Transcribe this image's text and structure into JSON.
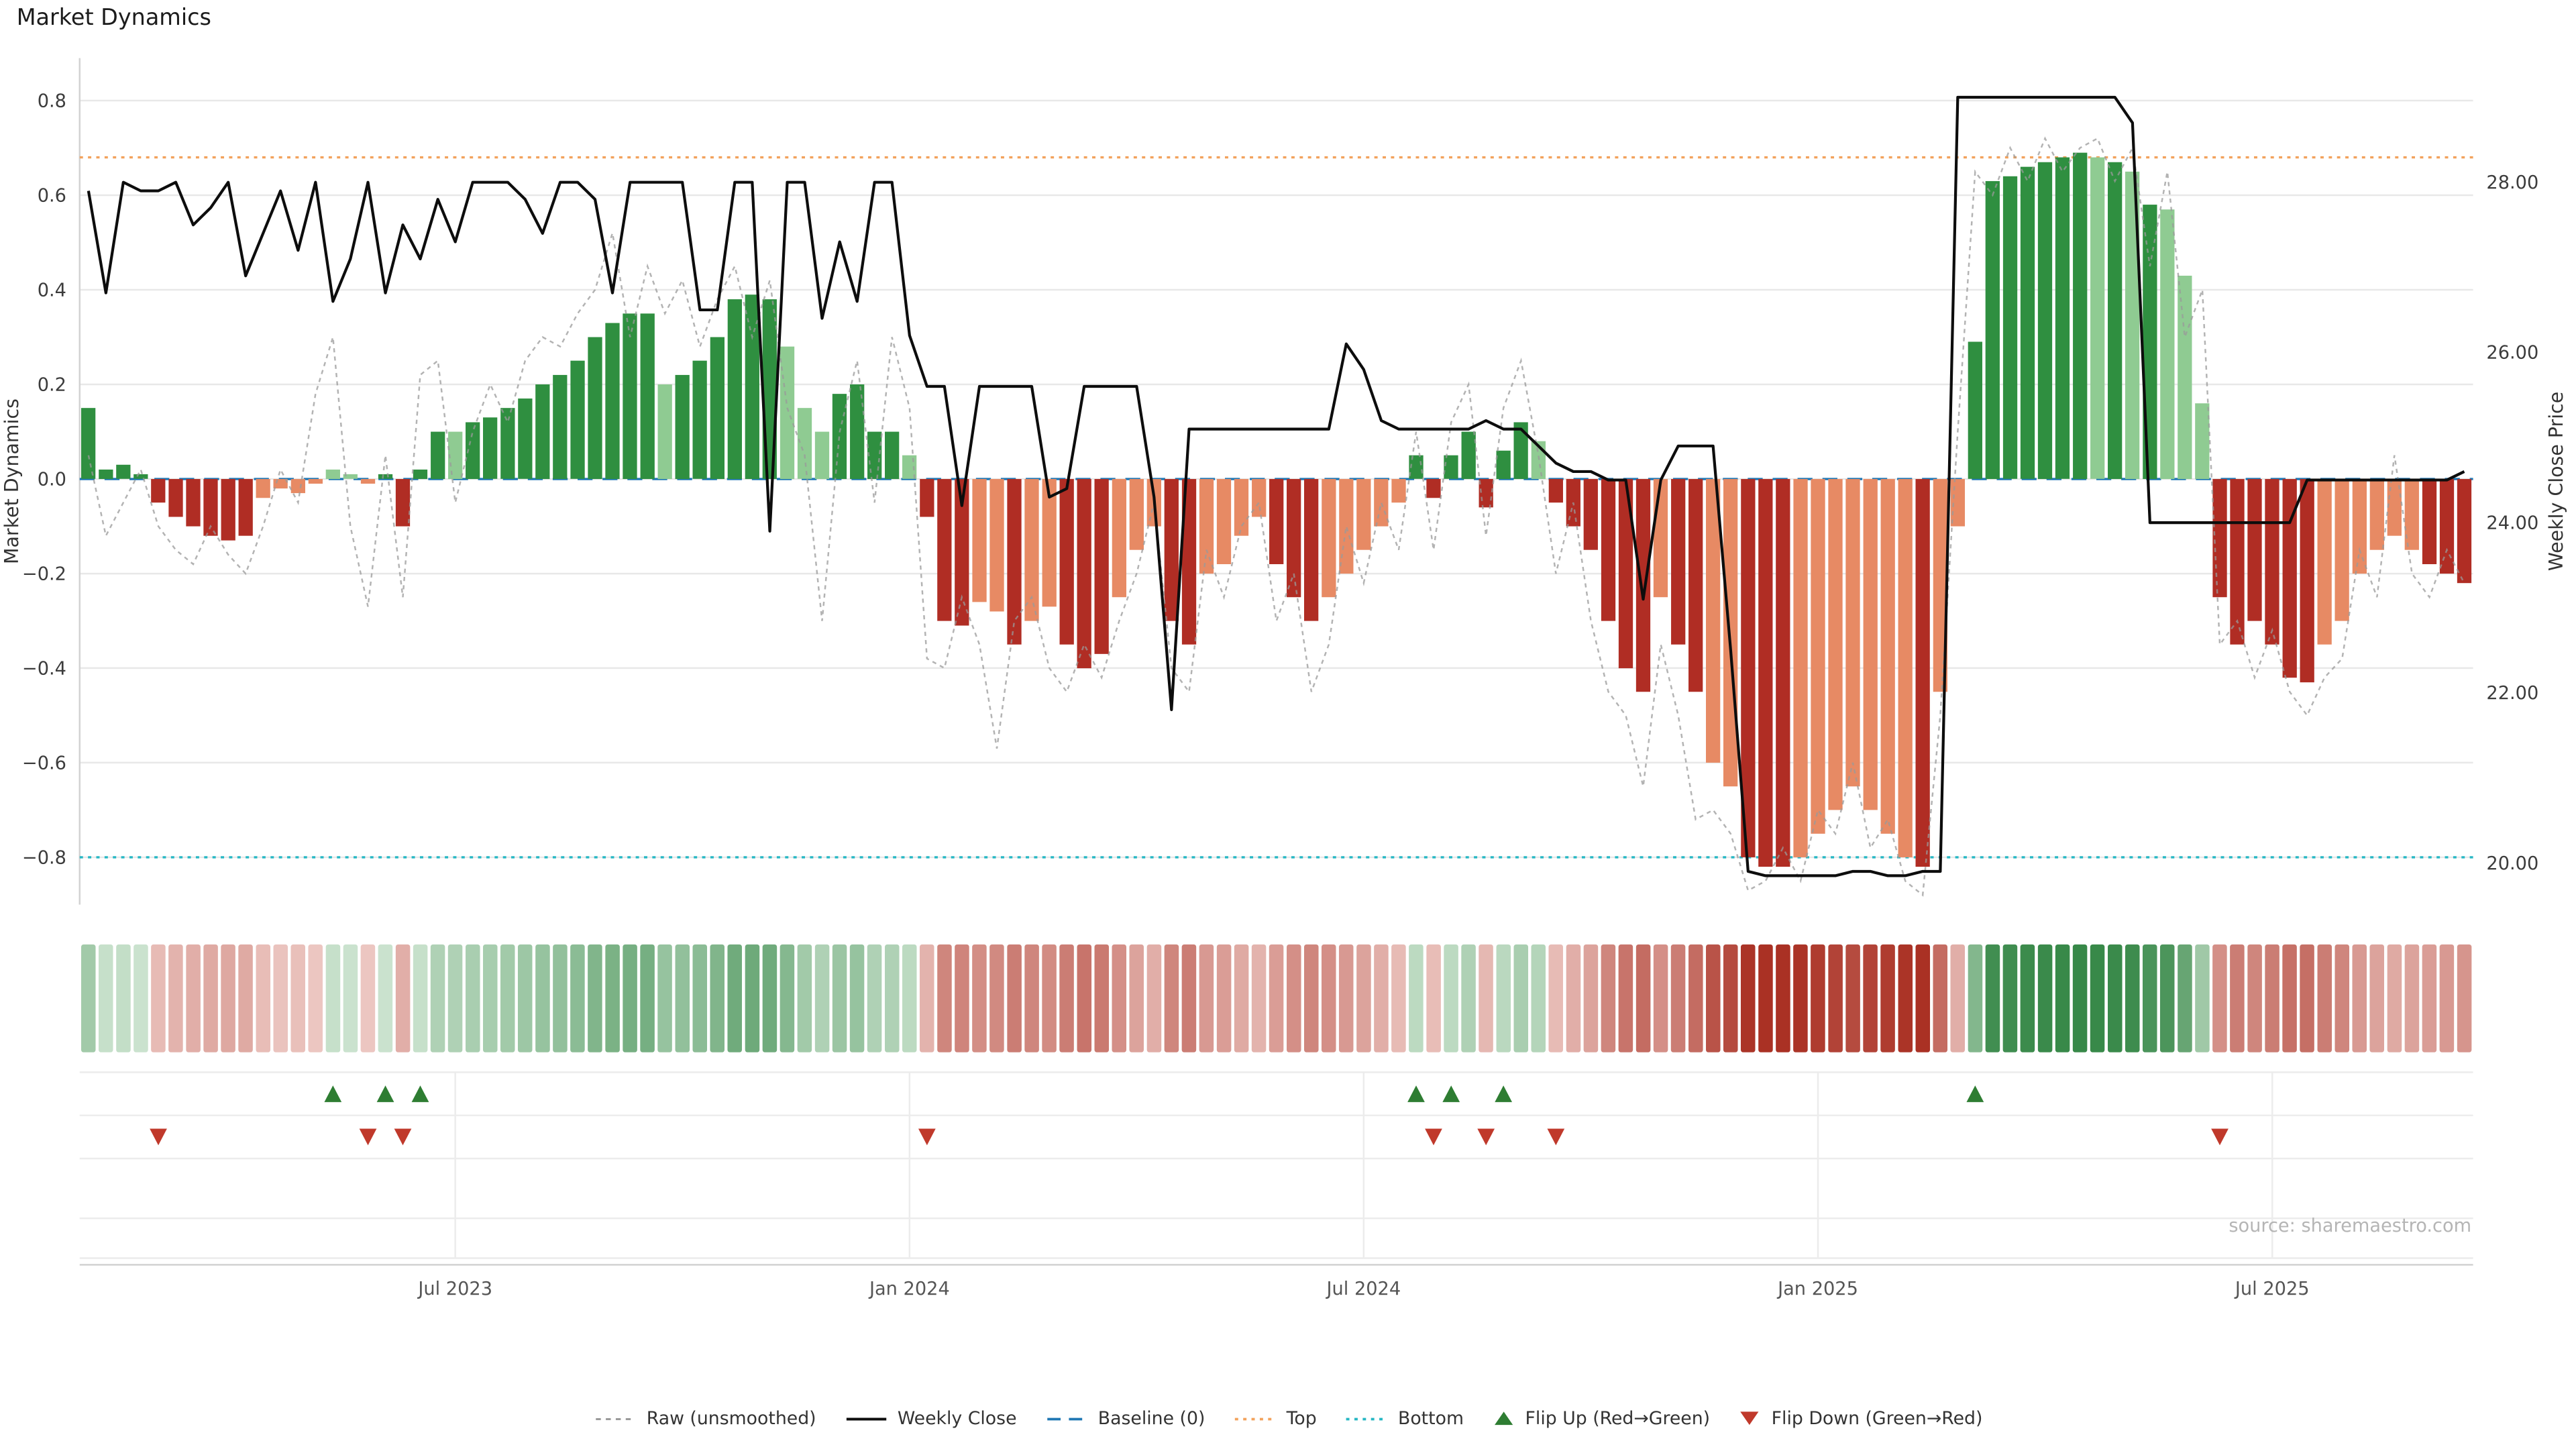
{
  "title": "Market Dynamics",
  "source": "source: sharemaestro.com",
  "legend": {
    "items": [
      {
        "label": "Raw (unsmoothed)"
      },
      {
        "label": "Weekly Close"
      },
      {
        "label": "Baseline (0)"
      },
      {
        "label": "Top"
      },
      {
        "label": "Bottom"
      },
      {
        "label": "Flip Up (Red→Green)"
      },
      {
        "label": "Flip Down (Green→Red)"
      }
    ]
  },
  "colors": {
    "bar_green_dark": "#2f8f40",
    "bar_green_light": "#8fcb92",
    "bar_red_dark": "#b02d24",
    "bar_red_light": "#e78a64",
    "close_line": "#0d0d0d",
    "raw_line": "#9a9a9a",
    "baseline": "#1f77b4",
    "top_line": "#f2a25c",
    "bottom_line": "#26b7c4",
    "flip_up": "#2e7d32",
    "flip_down": "#c0392b",
    "heat_green_lo": "#e7f4e8",
    "heat_green_hi": "#207a33",
    "heat_red_lo": "#f7e0dc",
    "heat_red_hi": "#aa3124",
    "grid": "#e8e8e8",
    "panel": "#ececec",
    "spine": "#d2d2d2"
  },
  "chart_data": {
    "type": "bar",
    "x_unit": "week",
    "n_weeks": 137,
    "x_ticks": [
      {
        "label": "Jul 2023",
        "week": 21
      },
      {
        "label": "Jan 2024",
        "week": 47
      },
      {
        "label": "Jul 2024",
        "week": 73
      },
      {
        "label": "Jan 2025",
        "week": 99
      },
      {
        "label": "Jul 2025",
        "week": 125
      }
    ],
    "left_axis": {
      "label": "Market Dynamics",
      "range": [
        -0.9,
        0.89
      ],
      "ticks": [
        0.8,
        0.6,
        0.4,
        0.2,
        0,
        -0.2,
        -0.4,
        -0.6,
        -0.8
      ]
    },
    "right_axis": {
      "label": "Weekly Close Price",
      "range": [
        19.51,
        29.46
      ],
      "ticks": [
        28,
        26,
        24,
        22,
        20
      ]
    },
    "reference_lines": {
      "baseline": 0,
      "top": 0.68,
      "bottom": -0.8
    },
    "flip_up_weeks": [
      14,
      17,
      19,
      76,
      78,
      81,
      108
    ],
    "flip_down_weeks": [
      4,
      16,
      18,
      48,
      77,
      80,
      84,
      122
    ],
    "series": [
      {
        "name": "Market Dynamics (smoothed bars)",
        "type": "bar",
        "axis": "left",
        "values": [
          0.15,
          0.02,
          0.03,
          0.01,
          -0.05,
          -0.08,
          -0.1,
          -0.12,
          -0.13,
          -0.12,
          -0.04,
          -0.02,
          -0.03,
          -0.01,
          0.02,
          0.01,
          -0.01,
          0.01,
          -0.1,
          0.02,
          0.1,
          0.1,
          0.12,
          0.13,
          0.15,
          0.17,
          0.2,
          0.22,
          0.25,
          0.3,
          0.33,
          0.35,
          0.35,
          0.2,
          0.22,
          0.25,
          0.3,
          0.38,
          0.39,
          0.38,
          0.28,
          0.15,
          0.1,
          0.18,
          0.2,
          0.1,
          0.1,
          0.05,
          -0.08,
          -0.3,
          -0.31,
          -0.26,
          -0.28,
          -0.35,
          -0.3,
          -0.27,
          -0.35,
          -0.4,
          -0.37,
          -0.25,
          -0.15,
          -0.1,
          -0.3,
          -0.35,
          -0.2,
          -0.18,
          -0.12,
          -0.08,
          -0.18,
          -0.25,
          -0.3,
          -0.25,
          -0.2,
          -0.15,
          -0.1,
          -0.05,
          0.05,
          -0.04,
          0.05,
          0.1,
          -0.06,
          0.06,
          0.12,
          0.08,
          -0.05,
          -0.1,
          -0.15,
          -0.3,
          -0.4,
          -0.45,
          -0.25,
          -0.35,
          -0.45,
          -0.6,
          -0.65,
          -0.8,
          -0.82,
          -0.82,
          -0.8,
          -0.75,
          -0.7,
          -0.65,
          -0.7,
          -0.75,
          -0.8,
          -0.82,
          -0.45,
          -0.1,
          0.29,
          0.63,
          0.64,
          0.66,
          0.67,
          0.68,
          0.69,
          0.68,
          0.67,
          0.65,
          0.58,
          0.57,
          0.43,
          0.16,
          -0.25,
          -0.35,
          -0.3,
          -0.35,
          -0.42,
          -0.43,
          -0.35,
          -0.3,
          -0.2,
          -0.15,
          -0.12,
          -0.15,
          -0.18,
          -0.2,
          -0.22
        ],
        "tone": "ddddddddddllllllldddddldddddddddddldddddd"
      },
      {
        "name": "Raw (unsmoothed)",
        "type": "line",
        "axis": "left",
        "values": [
          0.05,
          -0.12,
          -0.05,
          0.02,
          -0.1,
          -0.15,
          -0.18,
          -0.1,
          -0.16,
          -0.2,
          -0.1,
          0.02,
          -0.05,
          0.18,
          0.3,
          -0.1,
          -0.27,
          0.05,
          -0.25,
          0.22,
          0.25,
          -0.05,
          0.1,
          0.2,
          0.12,
          0.25,
          0.3,
          0.28,
          0.35,
          0.4,
          0.52,
          0.3,
          0.45,
          0.35,
          0.42,
          0.28,
          0.38,
          0.45,
          0.3,
          0.42,
          0.15,
          0.05,
          -0.3,
          0.1,
          0.25,
          -0.05,
          0.3,
          0.15,
          -0.38,
          -0.4,
          -0.25,
          -0.35,
          -0.57,
          -0.3,
          -0.25,
          -0.4,
          -0.45,
          -0.35,
          -0.42,
          -0.3,
          -0.2,
          -0.05,
          -0.4,
          -0.45,
          -0.15,
          -0.25,
          -0.1,
          -0.05,
          -0.3,
          -0.2,
          -0.45,
          -0.35,
          -0.1,
          -0.22,
          -0.05,
          -0.15,
          0.1,
          -0.15,
          0.12,
          0.2,
          -0.12,
          0.15,
          0.25,
          0.05,
          -0.2,
          -0.05,
          -0.3,
          -0.45,
          -0.5,
          -0.65,
          -0.35,
          -0.5,
          -0.72,
          -0.7,
          -0.75,
          -0.87,
          -0.85,
          -0.78,
          -0.85,
          -0.7,
          -0.75,
          -0.6,
          -0.78,
          -0.72,
          -0.85,
          -0.88,
          -0.5,
          0.1,
          0.65,
          0.6,
          0.7,
          0.63,
          0.72,
          0.65,
          0.7,
          0.72,
          0.63,
          0.7,
          0.45,
          0.65,
          0.3,
          0.4,
          -0.35,
          -0.3,
          -0.42,
          -0.32,
          -0.45,
          -0.5,
          -0.42,
          -0.38,
          -0.15,
          -0.25,
          0.05,
          -0.2,
          -0.25,
          -0.15,
          -0.22
        ]
      },
      {
        "name": "Weekly Close",
        "type": "line",
        "axis": "right",
        "values": [
          27.9,
          26.7,
          28,
          27.9,
          27.9,
          28,
          27.5,
          27.7,
          28,
          26.9,
          27.4,
          27.9,
          27.2,
          28,
          26.6,
          27.1,
          28,
          26.7,
          27.5,
          27.1,
          27.8,
          27.3,
          28,
          28,
          28,
          27.8,
          27.4,
          28,
          28,
          27.8,
          26.7,
          28,
          28,
          28,
          28,
          26.5,
          26.5,
          28,
          28,
          23.9,
          28,
          28,
          26.4,
          27.3,
          26.6,
          28,
          28,
          26.2,
          25.6,
          25.6,
          24.2,
          25.6,
          25.6,
          25.6,
          25.6,
          24.3,
          24.4,
          25.6,
          25.6,
          25.6,
          25.6,
          24.3,
          21.8,
          25.1,
          25.1,
          25.1,
          25.1,
          25.1,
          25.1,
          25.1,
          25.1,
          25.1,
          26.1,
          25.8,
          25.2,
          25.1,
          25.1,
          25.1,
          25.1,
          25.1,
          25.2,
          25.1,
          25.1,
          24.9,
          24.7,
          24.6,
          24.6,
          24.5,
          24.5,
          23.1,
          24.5,
          24.9,
          24.9,
          24.9,
          22.5,
          19.9,
          19.85,
          19.85,
          19.85,
          19.85,
          19.85,
          19.9,
          19.9,
          19.85,
          19.85,
          19.9,
          19.9,
          29,
          29,
          29,
          29,
          29,
          29,
          29,
          29,
          29,
          29,
          28.7,
          24,
          24,
          24,
          24,
          24,
          24,
          24,
          24,
          24,
          24.5,
          24.5,
          24.5,
          24.5,
          24.5,
          24.5,
          24.5,
          24.5,
          24.5,
          24.6
        ]
      }
    ]
  }
}
